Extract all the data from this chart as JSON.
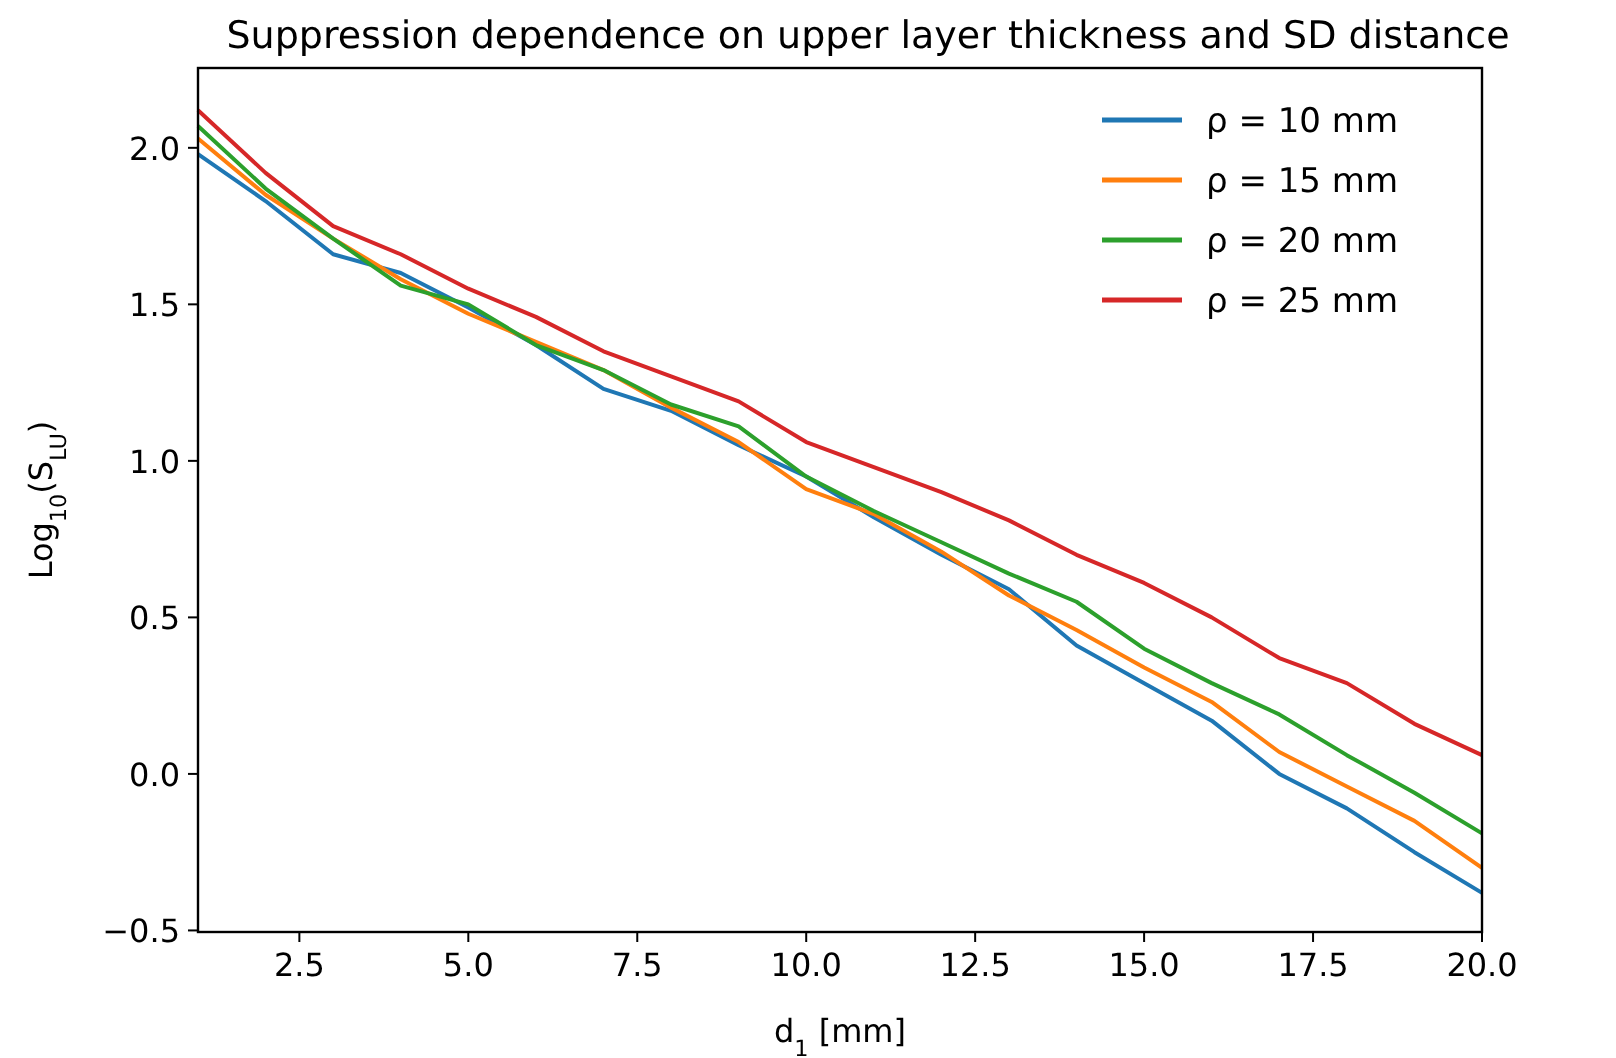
{
  "chart_data": {
    "type": "line",
    "title": "Suppression dependence on upper layer thickness and SD distance",
    "xlabel": "d$_{1}$ [mm]",
    "ylabel": "Log$_{10}$(S$_{LU}$)",
    "x": [
      1,
      2,
      3,
      4,
      5,
      6,
      7,
      8,
      9,
      10,
      11,
      12,
      13,
      14,
      15,
      16,
      17,
      18,
      19,
      20
    ],
    "series": [
      {
        "name": "ρ = 10 mm",
        "color": "#1f77b4",
        "values": [
          1.98,
          1.83,
          1.66,
          1.6,
          1.49,
          1.37,
          1.23,
          1.16,
          1.05,
          0.95,
          0.82,
          0.7,
          0.59,
          0.41,
          0.29,
          0.17,
          0.0,
          -0.11,
          -0.25,
          -0.38
        ]
      },
      {
        "name": "ρ = 15 mm",
        "color": "#ff7f0e",
        "values": [
          2.03,
          1.85,
          1.71,
          1.58,
          1.47,
          1.38,
          1.29,
          1.17,
          1.06,
          0.91,
          0.83,
          0.71,
          0.57,
          0.46,
          0.34,
          0.23,
          0.07,
          -0.04,
          -0.15,
          -0.3
        ]
      },
      {
        "name": "ρ = 20 mm",
        "color": "#2ca02c",
        "values": [
          2.07,
          1.87,
          1.71,
          1.56,
          1.5,
          1.37,
          1.29,
          1.18,
          1.11,
          0.95,
          0.84,
          0.74,
          0.64,
          0.55,
          0.4,
          0.29,
          0.19,
          0.06,
          -0.06,
          -0.19
        ]
      },
      {
        "name": "ρ = 25 mm",
        "color": "#d62728",
        "values": [
          2.12,
          1.92,
          1.75,
          1.66,
          1.55,
          1.46,
          1.35,
          1.27,
          1.19,
          1.06,
          0.98,
          0.9,
          0.81,
          0.7,
          0.61,
          0.5,
          0.37,
          0.29,
          0.16,
          0.06
        ]
      }
    ],
    "xlim": [
      1,
      20
    ],
    "xticks": [
      {
        "value": 2.5,
        "label": "2.5"
      },
      {
        "value": 5,
        "label": "5.0"
      },
      {
        "value": 7.5,
        "label": "7.5"
      },
      {
        "value": 10,
        "label": "10.0"
      },
      {
        "value": 12.5,
        "label": "12.5"
      },
      {
        "value": 15,
        "label": "15.0"
      },
      {
        "value": 17.5,
        "label": "17.5"
      },
      {
        "value": 20,
        "label": "20.0"
      }
    ],
    "ylim": [
      -0.505,
      2.255
    ],
    "yticks": [
      {
        "value": -0.5,
        "label": "−0.5"
      },
      {
        "value": 0,
        "label": "0.0"
      },
      {
        "value": 0.5,
        "label": "0.5"
      },
      {
        "value": 1,
        "label": "1.0"
      },
      {
        "value": 1.5,
        "label": "1.5"
      },
      {
        "value": 2,
        "label": "2.0"
      }
    ],
    "grid": false,
    "legend": "top right",
    "line_style": "solid",
    "marker": "none"
  }
}
